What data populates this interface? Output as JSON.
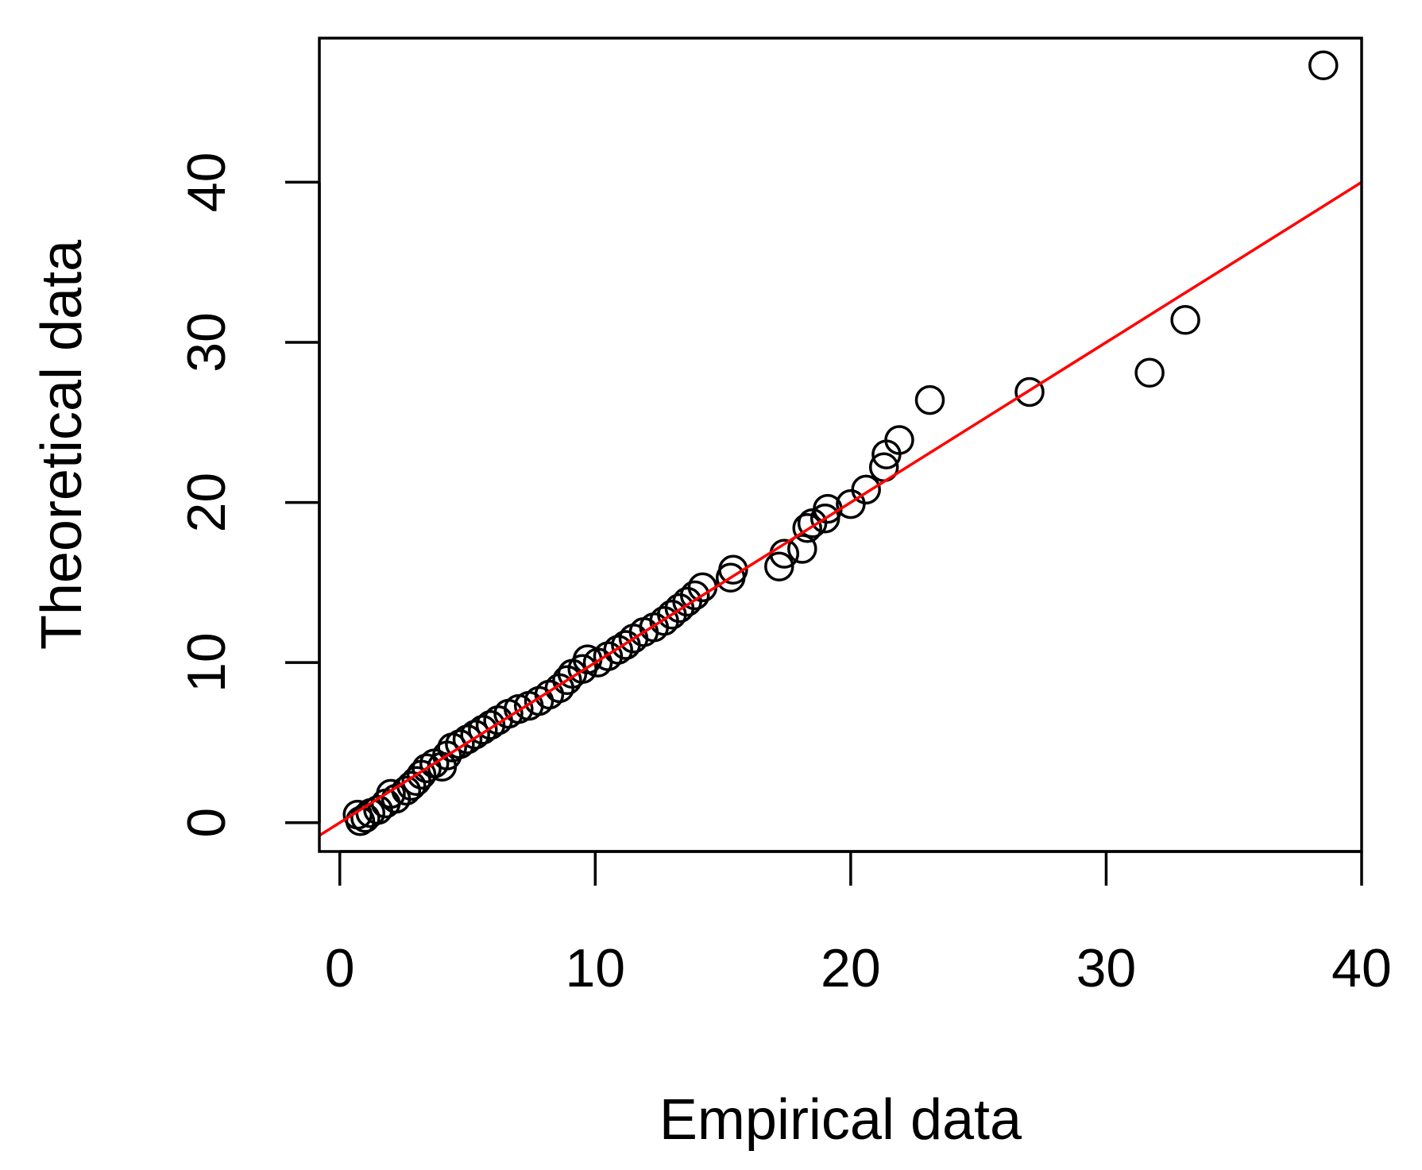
{
  "chart_data": {
    "type": "scatter",
    "title": "",
    "xlabel": "Empirical data",
    "ylabel": "Theoretical data",
    "xlim": [
      -0.8,
      40
    ],
    "ylim": [
      -1.8,
      49
    ],
    "xticks": [
      0,
      10,
      20,
      30,
      40
    ],
    "yticks": [
      0,
      10,
      20,
      30,
      40
    ],
    "xtick_labels": [
      "0",
      "10",
      "20",
      "30",
      "40"
    ],
    "ytick_labels": [
      "0",
      "10",
      "20",
      "30",
      "40"
    ],
    "grid": false,
    "legend": null,
    "marker": "open-circle",
    "point_color": "#000000",
    "reference_line": {
      "intercept": 0,
      "slope": 1,
      "color": "#ff0000"
    },
    "points": [
      [
        0.7,
        0.5
      ],
      [
        0.8,
        0.1
      ],
      [
        1.0,
        0.3
      ],
      [
        1.2,
        0.6
      ],
      [
        1.5,
        0.8
      ],
      [
        1.8,
        1.2
      ],
      [
        2.0,
        1.8
      ],
      [
        2.2,
        1.5
      ],
      [
        2.6,
        2.0
      ],
      [
        2.8,
        2.3
      ],
      [
        3.0,
        2.6
      ],
      [
        3.2,
        3.0
      ],
      [
        3.4,
        3.4
      ],
      [
        3.7,
        3.7
      ],
      [
        4.0,
        3.5
      ],
      [
        4.2,
        4.2
      ],
      [
        4.4,
        4.7
      ],
      [
        4.7,
        4.9
      ],
      [
        5.0,
        5.2
      ],
      [
        5.3,
        5.5
      ],
      [
        5.6,
        5.8
      ],
      [
        5.9,
        6.1
      ],
      [
        6.2,
        6.4
      ],
      [
        6.6,
        6.8
      ],
      [
        7.0,
        7.1
      ],
      [
        7.4,
        7.3
      ],
      [
        7.8,
        7.6
      ],
      [
        8.2,
        8.0
      ],
      [
        8.6,
        8.4
      ],
      [
        8.9,
        8.9
      ],
      [
        9.1,
        9.3
      ],
      [
        9.5,
        9.6
      ],
      [
        9.7,
        10.2
      ],
      [
        10.1,
        10.0
      ],
      [
        10.5,
        10.4
      ],
      [
        10.9,
        10.8
      ],
      [
        11.2,
        11.1
      ],
      [
        11.5,
        11.5
      ],
      [
        11.9,
        11.9
      ],
      [
        12.3,
        12.2
      ],
      [
        12.7,
        12.6
      ],
      [
        13.0,
        13.0
      ],
      [
        13.3,
        13.4
      ],
      [
        13.6,
        13.8
      ],
      [
        13.9,
        14.2
      ],
      [
        14.2,
        14.7
      ],
      [
        15.3,
        15.3
      ],
      [
        15.4,
        15.8
      ],
      [
        17.2,
        16.0
      ],
      [
        17.4,
        16.8
      ],
      [
        18.1,
        17.1
      ],
      [
        18.3,
        18.4
      ],
      [
        18.5,
        18.7
      ],
      [
        19.0,
        19.0
      ],
      [
        19.1,
        19.6
      ],
      [
        20.0,
        19.9
      ],
      [
        20.6,
        20.8
      ],
      [
        21.3,
        22.2
      ],
      [
        21.4,
        23.0
      ],
      [
        21.9,
        23.9
      ],
      [
        23.1,
        26.4
      ],
      [
        27.0,
        26.9
      ],
      [
        31.7,
        28.1
      ],
      [
        33.1,
        31.4
      ],
      [
        38.5,
        47.3
      ]
    ]
  }
}
